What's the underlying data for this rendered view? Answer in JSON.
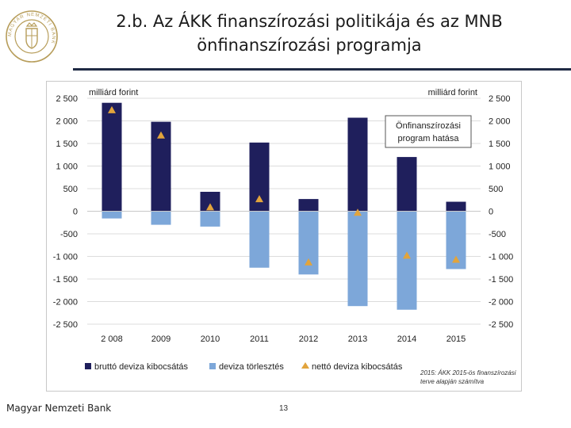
{
  "slide": {
    "title_line1": "2.b. Az ÁKK finanszírozási politikája és az MNB",
    "title_line2": "önfinanszírozási programja",
    "footer": "Magyar Nemzeti Bank",
    "page_number": "13",
    "logo_text": "MAGYAR NEMZETI BANK"
  },
  "colors": {
    "gross": "#1f1f5c",
    "repay": "#7da7d9",
    "net": "#e2a43c",
    "grid": "#dcdcdc",
    "callout_border": "#555555"
  },
  "chart_data": {
    "type": "bar",
    "y_unit_left": "milliárd forint",
    "y_unit_right": "milliárd forint",
    "categories": [
      "2 008",
      "2009",
      "2010",
      "2011",
      "2012",
      "2013",
      "2014",
      "2015"
    ],
    "ylim": [
      -2500,
      2500
    ],
    "ticks": [
      2500,
      2000,
      1500,
      1000,
      500,
      0,
      -500,
      -1000,
      -1500,
      -2000,
      -2500
    ],
    "tick_labels": [
      "2 500",
      "2 000",
      "1 500",
      "1 000",
      "500",
      "0",
      "-500",
      "-1 000",
      "-1 500",
      "-2 000",
      "-2 500"
    ],
    "series": [
      {
        "name": "bruttó deviza kibocsátás",
        "kind": "bar",
        "values": [
          2400,
          1980,
          430,
          1520,
          270,
          2070,
          1200,
          210
        ]
      },
      {
        "name": "deviza törlesztés",
        "kind": "bar",
        "values": [
          -160,
          -300,
          -340,
          -1250,
          -1400,
          -2100,
          -2180,
          -1280
        ]
      },
      {
        "name": "nettó deviza kibocsátás",
        "kind": "marker",
        "values": [
          2240,
          1680,
          90,
          270,
          -1130,
          -30,
          -980,
          -1070
        ]
      }
    ],
    "callout": {
      "line1": "Önfinanszírozási",
      "line2": "program hatása"
    },
    "note_line1": "2015: ÁKK 2015-ös finanszírozási",
    "note_line2": "terve alapján számítva"
  }
}
